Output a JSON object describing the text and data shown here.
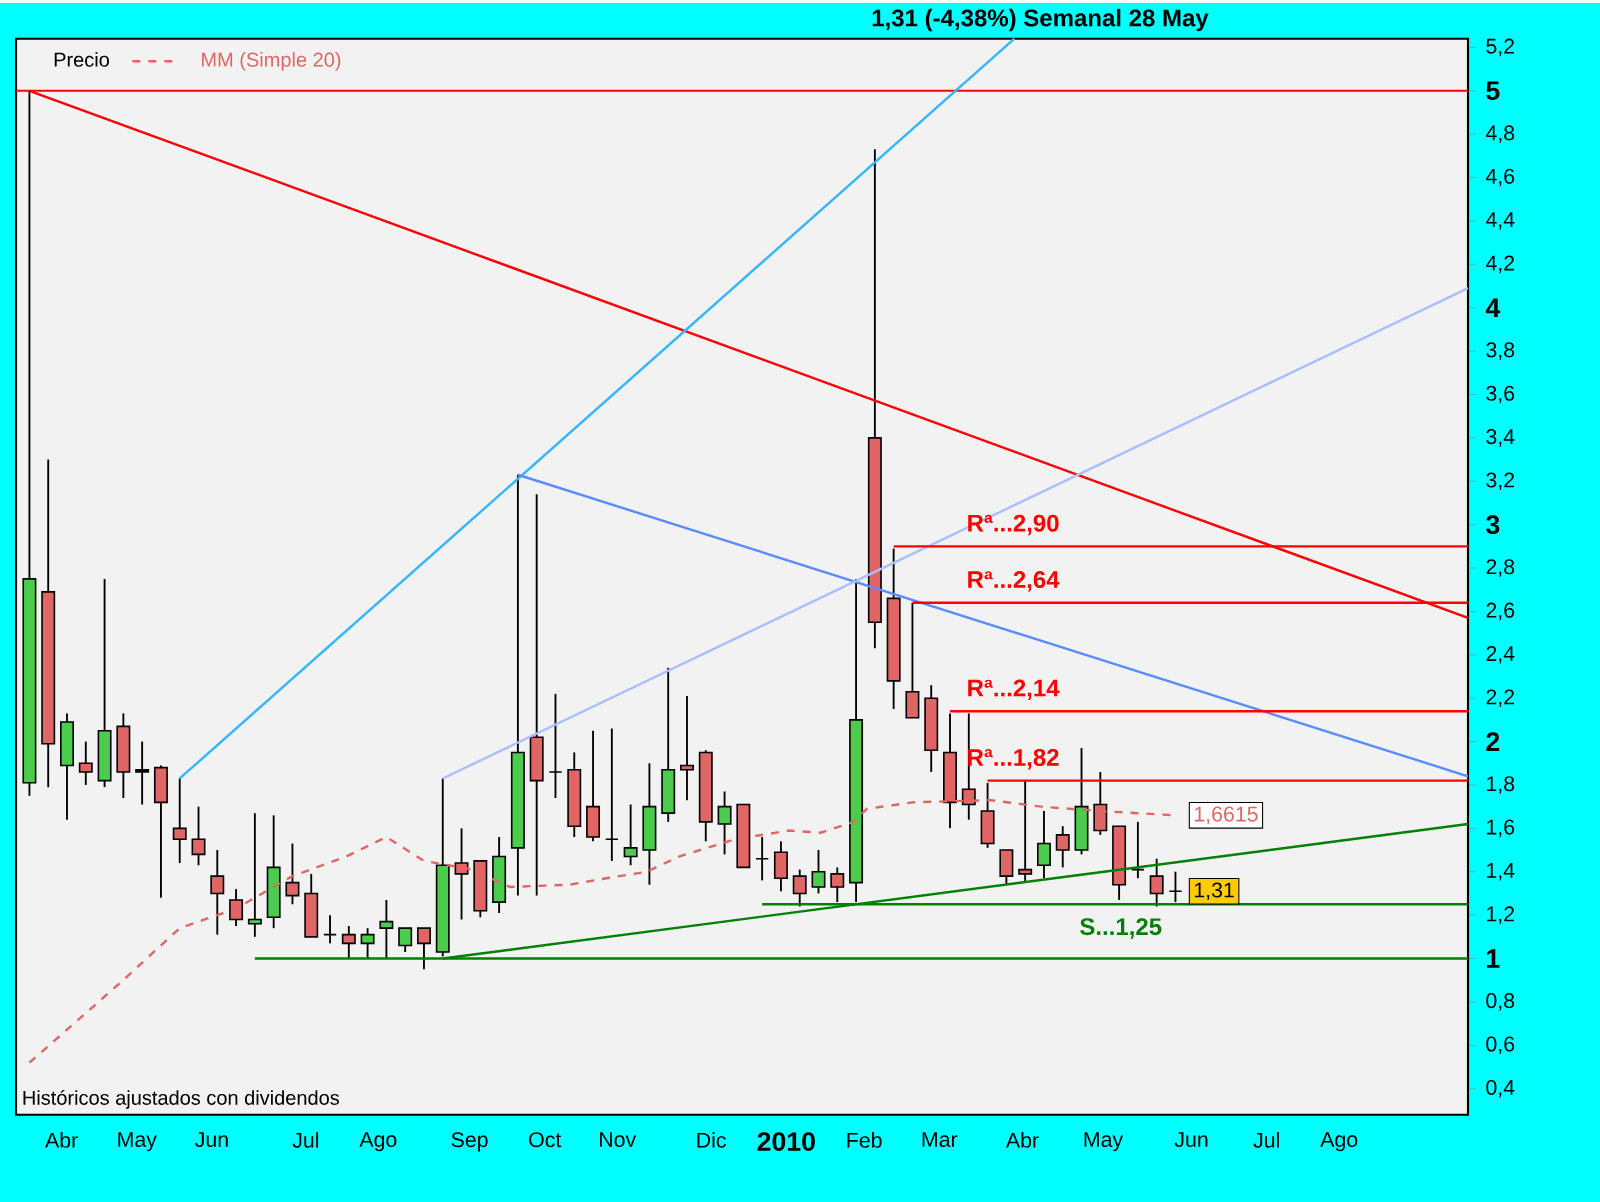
{
  "chart_data": {
    "type": "candlestick",
    "title": "1,31 (-4,38%)    Semanal  28 May",
    "annotations": [
      "Históricos ajustados con dividendos",
      {
        "text": "Rª...2,90",
        "x": "2010-03-10",
        "y": 2.9
      },
      {
        "text": "Rª...2,64",
        "x": "2010-03-10",
        "y": 2.64
      },
      {
        "text": "Rª...2,14",
        "x": "2010-03-10",
        "y": 2.14
      },
      {
        "text": "Rª...1,82",
        "x": "2010-03-10",
        "y": 1.82
      },
      {
        "text": "S...1,25",
        "x": "2010-04-21",
        "y": 1.25
      },
      {
        "text": "1,6615",
        "x": "2010-05-28",
        "y": 1.66
      },
      {
        "text": "1,31",
        "x": "2010-05-28",
        "y": 1.31
      }
    ],
    "xlim": [
      "2009-03-22",
      "2010-09-14"
    ],
    "xticks": [
      {
        "value": "2009-04-08",
        "label": "Abr"
      },
      {
        "value": "2009-05-06",
        "label": "May"
      },
      {
        "value": "2009-06-03",
        "label": "Jun"
      },
      {
        "value": "2009-07-08",
        "label": "Jul"
      },
      {
        "value": "2009-08-04",
        "label": "Ago"
      },
      {
        "value": "2009-09-07",
        "label": "Sep"
      },
      {
        "value": "2009-10-05",
        "label": "Oct"
      },
      {
        "value": "2009-11-01",
        "label": "Nov"
      },
      {
        "value": "2009-12-06",
        "label": "Dic"
      },
      {
        "value": "2010-01-03",
        "label": "2010"
      },
      {
        "value": "2010-02-01",
        "label": "Feb"
      },
      {
        "value": "2010-03-01",
        "label": "Mar"
      },
      {
        "value": "2010-04-01",
        "label": "Abr"
      },
      {
        "value": "2010-05-01",
        "label": "May"
      },
      {
        "value": "2010-06-03",
        "label": "Jun"
      },
      {
        "value": "2010-07-01",
        "label": "Jul"
      },
      {
        "value": "2010-07-28",
        "label": "Ago"
      }
    ],
    "ylim": [
      0.28,
      5.24
    ],
    "yticks": [
      {
        "value": 0.4,
        "label": "0,4"
      },
      {
        "value": 0.6,
        "label": "0,6"
      },
      {
        "value": 0.8,
        "label": "0,8"
      },
      1,
      {
        "value": 1.2,
        "label": "1,2"
      },
      {
        "value": 1.4,
        "label": "1,4"
      },
      {
        "value": 1.6,
        "label": "1,6"
      },
      {
        "value": 1.8,
        "label": "1,8"
      },
      2,
      {
        "value": 2.2,
        "label": "2,2"
      },
      {
        "value": 2.4,
        "label": "2,4"
      },
      {
        "value": 2.6,
        "label": "2,6"
      },
      {
        "value": 2.8,
        "label": "2,8"
      },
      3,
      {
        "value": 3.2,
        "label": "3,2"
      },
      {
        "value": 3.4,
        "label": "3,4"
      },
      {
        "value": 3.6,
        "label": "3,6"
      },
      {
        "value": 3.8,
        "label": "3,8"
      },
      4,
      {
        "value": 4.2,
        "label": "4,2"
      },
      {
        "value": 4.4,
        "label": "4,4"
      },
      {
        "value": 4.6,
        "label": "4,6"
      },
      {
        "value": 4.8,
        "label": "4,8"
      },
      5,
      {
        "value": 5.2,
        "label": "5,2"
      }
    ],
    "legend": "top left",
    "ref_lines": [
      {
        "axis": "y",
        "value": 5,
        "color": "#ff0000"
      }
    ],
    "series": [
      {
        "name": "Precio",
        "x": [
          "2009-03-27",
          "2009-04-03",
          "2009-04-10",
          "2009-04-17",
          "2009-04-24",
          "2009-05-01",
          "2009-05-08",
          "2009-05-15",
          "2009-05-22",
          "2009-05-29",
          "2009-06-05",
          "2009-06-12",
          "2009-06-19",
          "2009-06-26",
          "2009-07-03",
          "2009-07-10",
          "2009-07-17",
          "2009-07-24",
          "2009-07-31",
          "2009-08-07",
          "2009-08-14",
          "2009-08-21",
          "2009-08-28",
          "2009-09-04",
          "2009-09-11",
          "2009-09-18",
          "2009-09-25",
          "2009-10-02",
          "2009-10-09",
          "2009-10-16",
          "2009-10-23",
          "2009-10-30",
          "2009-11-06",
          "2009-11-13",
          "2009-11-20",
          "2009-11-27",
          "2009-12-04",
          "2009-12-11",
          "2009-12-18",
          "2009-12-25",
          "2010-01-01",
          "2010-01-08",
          "2010-01-15",
          "2010-01-22",
          "2010-01-29",
          "2010-02-05",
          "2010-02-12",
          "2010-02-19",
          "2010-02-26",
          "2010-03-05",
          "2010-03-12",
          "2010-03-19",
          "2010-03-26",
          "2010-04-02",
          "2010-04-09",
          "2010-04-16",
          "2010-04-23",
          "2010-04-30",
          "2010-05-07",
          "2010-05-14",
          "2010-05-21",
          "2010-05-28"
        ],
        "ohlc": [
          [
            1.81,
            5.0,
            1.75,
            2.75
          ],
          [
            2.69,
            3.3,
            1.79,
            1.99
          ],
          [
            1.89,
            2.13,
            1.64,
            2.09
          ],
          [
            1.9,
            2.0,
            1.8,
            1.86
          ],
          [
            1.82,
            2.75,
            1.79,
            2.05
          ],
          [
            2.07,
            2.13,
            1.74,
            1.86
          ],
          [
            1.87,
            2.0,
            1.71,
            1.86
          ],
          [
            1.88,
            1.89,
            1.28,
            1.72
          ],
          [
            1.6,
            1.83,
            1.44,
            1.55
          ],
          [
            1.55,
            1.7,
            1.43,
            1.48
          ],
          [
            1.38,
            1.5,
            1.11,
            1.3
          ],
          [
            1.27,
            1.32,
            1.15,
            1.18
          ],
          [
            1.16,
            1.67,
            1.1,
            1.18
          ],
          [
            1.19,
            1.66,
            1.14,
            1.42
          ],
          [
            1.35,
            1.53,
            1.25,
            1.29
          ],
          [
            1.3,
            1.39,
            1.1,
            1.1
          ],
          [
            1.11,
            1.2,
            1.07,
            1.11
          ],
          [
            1.11,
            1.15,
            1.0,
            1.07
          ],
          [
            1.07,
            1.14,
            1.0,
            1.11
          ],
          [
            1.14,
            1.27,
            1.0,
            1.17
          ],
          [
            1.06,
            1.14,
            1.03,
            1.14
          ],
          [
            1.14,
            1.14,
            0.95,
            1.07
          ],
          [
            1.03,
            1.83,
            1.01,
            1.43
          ],
          [
            1.44,
            1.6,
            1.18,
            1.39
          ],
          [
            1.45,
            1.45,
            1.19,
            1.22
          ],
          [
            1.26,
            1.56,
            1.21,
            1.47
          ],
          [
            1.51,
            3.23,
            1.29,
            1.95
          ],
          [
            2.02,
            3.14,
            1.29,
            1.82
          ],
          [
            1.86,
            2.22,
            1.74,
            1.86
          ],
          [
            1.87,
            1.95,
            1.56,
            1.61
          ],
          [
            1.7,
            2.05,
            1.54,
            1.56
          ],
          [
            1.55,
            2.06,
            1.45,
            1.55
          ],
          [
            1.47,
            1.71,
            1.43,
            1.51
          ],
          [
            1.5,
            1.9,
            1.34,
            1.7
          ],
          [
            1.67,
            2.34,
            1.63,
            1.87
          ],
          [
            1.89,
            2.21,
            1.73,
            1.87
          ],
          [
            1.95,
            1.96,
            1.54,
            1.63
          ],
          [
            1.62,
            1.77,
            1.48,
            1.7
          ],
          [
            1.71,
            1.71,
            1.42,
            1.42
          ],
          [
            1.46,
            1.56,
            1.36,
            1.46
          ],
          [
            1.49,
            1.54,
            1.31,
            1.37
          ],
          [
            1.38,
            1.41,
            1.24,
            1.3
          ],
          [
            1.33,
            1.5,
            1.3,
            1.4
          ],
          [
            1.39,
            1.42,
            1.26,
            1.33
          ],
          [
            1.35,
            2.75,
            1.26,
            2.1
          ],
          [
            3.4,
            4.73,
            2.43,
            2.55
          ],
          [
            2.66,
            2.89,
            2.15,
            2.28
          ],
          [
            2.23,
            2.64,
            2.11,
            2.11
          ],
          [
            2.2,
            2.26,
            1.86,
            1.96
          ],
          [
            1.95,
            2.13,
            1.6,
            1.72
          ],
          [
            1.78,
            2.13,
            1.64,
            1.71
          ],
          [
            1.68,
            1.81,
            1.51,
            1.53
          ],
          [
            1.5,
            1.5,
            1.34,
            1.38
          ],
          [
            1.41,
            1.82,
            1.35,
            1.39
          ],
          [
            1.43,
            1.68,
            1.37,
            1.53
          ],
          [
            1.57,
            1.61,
            1.42,
            1.5
          ],
          [
            1.5,
            1.97,
            1.48,
            1.7
          ],
          [
            1.71,
            1.86,
            1.57,
            1.59
          ],
          [
            1.61,
            1.61,
            1.27,
            1.34
          ],
          [
            1.41,
            1.63,
            1.37,
            1.41
          ],
          [
            1.38,
            1.46,
            1.24,
            1.3
          ],
          [
            1.31,
            1.4,
            1.26,
            1.31
          ]
        ],
        "colors": [
          "#4ccc4c",
          "#e06666",
          "#4ccc4c",
          "#e06666",
          "#4ccc4c",
          "#e06666",
          "#000000",
          "#e06666",
          "#e06666",
          "#e06666",
          "#e06666",
          "#e06666",
          "#4ccc4c",
          "#4ccc4c",
          "#e06666",
          "#e06666",
          "#000000",
          "#e06666",
          "#4ccc4c",
          "#4ccc4c",
          "#4ccc4c",
          "#e06666",
          "#4ccc4c",
          "#e06666",
          "#e06666",
          "#4ccc4c",
          "#4ccc4c",
          "#e06666",
          "#000000",
          "#e06666",
          "#e06666",
          "#000000",
          "#4ccc4c",
          "#4ccc4c",
          "#4ccc4c",
          "#e06666",
          "#e06666",
          "#4ccc4c",
          "#e06666",
          "#000000",
          "#e06666",
          "#e06666",
          "#4ccc4c",
          "#e06666",
          "#4ccc4c",
          "#e06666",
          "#e06666",
          "#e06666",
          "#e06666",
          "#e06666",
          "#e06666",
          "#e06666",
          "#e06666",
          "#e06666",
          "#4ccc4c",
          "#e06666",
          "#4ccc4c",
          "#e06666",
          "#e06666",
          "#000000",
          "#e06666",
          "#000000"
        ]
      },
      {
        "name": "MM (Simple 20)",
        "type": "line",
        "color": "#e06666",
        "line_style": "dashed",
        "x": [
          "2009-03-27",
          "2009-04-30",
          "2009-05-22",
          "2009-06-12",
          "2009-07-03",
          "2009-07-23",
          "2009-08-07",
          "2009-08-21",
          "2009-09-08",
          "2009-09-22",
          "2009-10-14",
          "2009-10-28",
          "2009-11-12",
          "2009-11-24",
          "2009-12-15",
          "2010-01-04",
          "2010-01-16",
          "2010-01-28",
          "2010-02-02",
          "2010-02-19",
          "2010-03-20",
          "2010-04-08",
          "2010-04-30",
          "2010-05-28"
        ],
        "values": [
          0.52,
          0.89,
          1.14,
          1.23,
          1.38,
          1.47,
          1.56,
          1.45,
          1.41,
          1.33,
          1.34,
          1.37,
          1.4,
          1.47,
          1.55,
          1.59,
          1.58,
          1.63,
          1.69,
          1.72,
          1.73,
          1.7,
          1.68,
          1.66
        ]
      },
      {
        "type": "line",
        "color": "#ff0000",
        "x": [
          "2009-03-27",
          "2010-09-14"
        ],
        "values": [
          5.0,
          2.57
        ]
      },
      {
        "type": "line",
        "color": "#33b5ff",
        "x": [
          "2009-05-22",
          "2010-03-29"
        ],
        "values": [
          1.83,
          5.24
        ]
      },
      {
        "type": "line",
        "color": "#5b8cff",
        "x": [
          "2009-09-25",
          "2010-09-14"
        ],
        "values": [
          3.23,
          1.84
        ]
      },
      {
        "type": "line",
        "color": "#aabfff",
        "x": [
          "2009-08-28",
          "2010-09-14"
        ],
        "values": [
          1.83,
          4.09
        ]
      },
      {
        "type": "line",
        "color": "#008000",
        "x": [
          "2009-08-28",
          "2010-09-14"
        ],
        "values": [
          1.0,
          1.62
        ]
      },
      {
        "type": "line",
        "color": "#008000",
        "x": [
          "2009-06-19",
          "2010-09-14"
        ],
        "values": [
          1.0,
          1.0
        ]
      },
      {
        "type": "line",
        "color": "#008000",
        "x": [
          "2009-12-25",
          "2010-09-14"
        ],
        "values": [
          1.25,
          1.25
        ]
      },
      {
        "type": "line",
        "color": "#ff0000",
        "x": [
          "2010-02-12",
          "2010-09-14"
        ],
        "values": [
          2.9,
          2.9
        ]
      },
      {
        "type": "line",
        "color": "#ff0000",
        "x": [
          "2010-02-19",
          "2010-09-14"
        ],
        "values": [
          2.64,
          2.64
        ]
      },
      {
        "type": "line",
        "color": "#ff0000",
        "x": [
          "2010-03-05",
          "2010-09-14"
        ],
        "values": [
          2.14,
          2.14
        ]
      },
      {
        "type": "line",
        "color": "#ff0000",
        "x": [
          "2010-03-19",
          "2010-09-14"
        ],
        "values": [
          1.82,
          1.82
        ]
      }
    ]
  }
}
